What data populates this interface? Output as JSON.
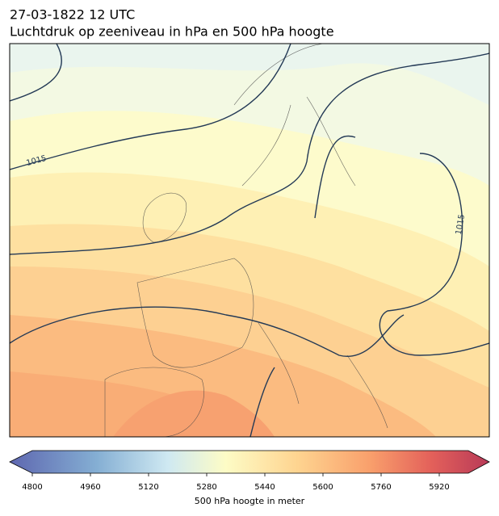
{
  "title": "27-03-1822 12 UTC",
  "subtitle": "Luchtdruk op zeeniveau in hPa en 500 hPa hoogte",
  "contour_labels": [
    1015,
    1015
  ],
  "colorbar": {
    "label": "500 hPa hoogte in meter",
    "lim": [
      4800,
      6000
    ],
    "ticks": [
      4800,
      4960,
      5120,
      5280,
      5440,
      5600,
      5760,
      5920
    ]
  }
}
